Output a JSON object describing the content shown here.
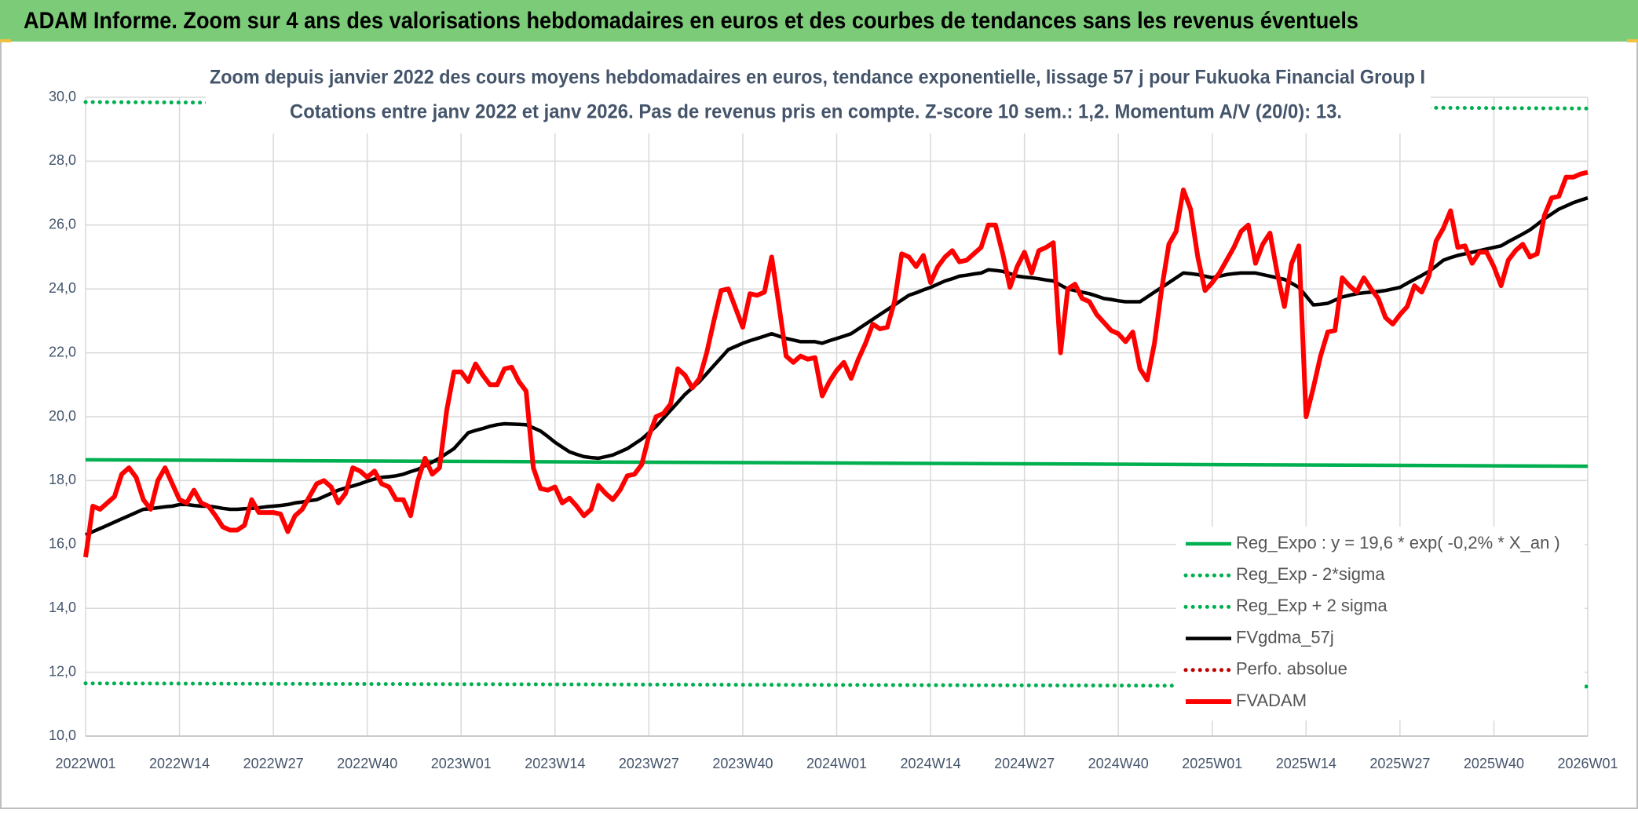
{
  "header": {
    "title": "ADAM Informe. Zoom sur 4 ans des valorisations hebdomadaires en euros et des courbes de tendances sans les revenus éventuels"
  },
  "chart_data": {
    "type": "line",
    "title": "Zoom depuis janvier 2022 des cours moyens hebdomadaires en euros, tendance exponentielle, lissage 57 j pour Fukuoka Financial Group I",
    "subtitle": "Cotations entre janv 2022 et janv 2026. Pas de revenus pris en compte. Z-score 10 sem.: 1,2. Momentum A/V (20/0): 13.",
    "categories": [
      "2022W01",
      null,
      null,
      null,
      null,
      null,
      null,
      null,
      null,
      null,
      null,
      null,
      null,
      "2022W14",
      null,
      null,
      null,
      null,
      null,
      null,
      null,
      null,
      null,
      null,
      null,
      null,
      "2022W27",
      null,
      null,
      null,
      null,
      null,
      null,
      null,
      null,
      null,
      null,
      null,
      null,
      "2022W40",
      null,
      null,
      null,
      null,
      null,
      null,
      null,
      null,
      null,
      null,
      null,
      null,
      "2023W01",
      null,
      null,
      null,
      null,
      null,
      null,
      null,
      null,
      null,
      null,
      null,
      null,
      "2023W14",
      null,
      null,
      null,
      null,
      null,
      null,
      null,
      null,
      null,
      null,
      null,
      null,
      "2023W27",
      null,
      null,
      null,
      null,
      null,
      null,
      null,
      null,
      null,
      null,
      null,
      null,
      "2023W40",
      null,
      null,
      null,
      null,
      null,
      null,
      null,
      null,
      null,
      null,
      null,
      null,
      "2024W01",
      null,
      null,
      null,
      null,
      null,
      null,
      null,
      null,
      null,
      null,
      null,
      null,
      "2024W14",
      null,
      null,
      null,
      null,
      null,
      null,
      null,
      null,
      null,
      null,
      null,
      null,
      "2024W27",
      null,
      null,
      null,
      null,
      null,
      null,
      null,
      null,
      null,
      null,
      null,
      null,
      "2024W40",
      null,
      null,
      null,
      null,
      null,
      null,
      null,
      null,
      null,
      null,
      null,
      null,
      "2025W01",
      null,
      null,
      null,
      null,
      null,
      null,
      null,
      null,
      null,
      null,
      null,
      null,
      "2025W14",
      null,
      null,
      null,
      null,
      null,
      null,
      null,
      null,
      null,
      null,
      null,
      null,
      "2025W27",
      null,
      null,
      null,
      null,
      null,
      null,
      null,
      null,
      null,
      null,
      null,
      null,
      "2025W40",
      null,
      null,
      null,
      null,
      null,
      null,
      null,
      null,
      null,
      null,
      null,
      null,
      "2026W01"
    ],
    "ylim": [
      10,
      30
    ],
    "yticks": [
      {
        "value": 10,
        "label": "10,0"
      },
      {
        "value": 12,
        "label": "12,0"
      },
      {
        "value": 14,
        "label": "14,0"
      },
      {
        "value": 16,
        "label": "16,0"
      },
      {
        "value": 18,
        "label": "18,0"
      },
      {
        "value": 20,
        "label": "20,0"
      },
      {
        "value": 22,
        "label": "22,0"
      },
      {
        "value": 24,
        "label": "24,0"
      },
      {
        "value": 26,
        "label": "26,0"
      },
      {
        "value": 28,
        "label": "28,0"
      },
      {
        "value": 30,
        "label": "30,0"
      }
    ],
    "grid": true,
    "legend": "lower right",
    "series": [
      {
        "name": "Reg_Expo : y = 19,6 * exp( -0,2% *  X_an )",
        "color": "#00b050",
        "style": "solid",
        "x": [
          "2022W01",
          "2026W01"
        ],
        "values": [
          18.65,
          18.45
        ]
      },
      {
        "name": "Reg_Exp - 2*sigma",
        "color": "#00b050",
        "style": "dotted",
        "x": [
          "2022W01",
          "2026W01"
        ],
        "values": [
          11.65,
          11.55
        ]
      },
      {
        "name": "Reg_Exp + 2 sigma",
        "color": "#00b050",
        "style": "dotted",
        "x": [
          "2022W01",
          "2026W01"
        ],
        "values": [
          29.85,
          29.65
        ]
      },
      {
        "name": "FVgdma_57j",
        "color": "#000000",
        "style": "solid",
        "values": [
          16.3,
          16.4,
          16.5,
          16.6,
          16.7,
          16.8,
          16.9,
          17.0,
          17.1,
          17.12,
          17.15,
          17.18,
          17.2,
          17.25,
          17.25,
          17.22,
          17.2,
          17.2,
          17.17,
          17.13,
          17.1,
          17.1,
          17.12,
          17.13,
          17.15,
          17.18,
          17.2,
          17.22,
          17.25,
          17.3,
          17.33,
          17.37,
          17.4,
          17.5,
          17.6,
          17.7,
          17.77,
          17.83,
          17.9,
          17.98,
          18.05,
          18.1,
          18.12,
          18.15,
          18.2,
          18.28,
          18.35,
          18.47,
          18.58,
          18.7,
          18.85,
          19.0,
          19.25,
          19.5,
          19.57,
          19.63,
          19.7,
          19.75,
          19.78,
          19.77,
          19.76,
          19.75,
          19.65,
          19.55,
          19.38,
          19.2,
          19.05,
          18.9,
          18.82,
          18.75,
          18.72,
          18.7,
          18.75,
          18.8,
          18.9,
          19.0,
          19.15,
          19.3,
          19.5,
          19.7,
          19.95,
          20.2,
          20.45,
          20.7,
          20.9,
          21.1,
          21.35,
          21.6,
          21.85,
          22.1,
          22.2,
          22.3,
          22.38,
          22.45,
          22.52,
          22.6,
          22.52,
          22.45,
          22.4,
          22.35,
          22.35,
          22.35,
          22.3,
          22.38,
          22.45,
          22.52,
          22.6,
          22.75,
          22.9,
          23.05,
          23.2,
          23.35,
          23.5,
          23.65,
          23.8,
          23.88,
          23.97,
          24.05,
          24.15,
          24.25,
          24.32,
          24.4,
          24.43,
          24.47,
          24.5,
          24.6,
          24.58,
          24.55,
          24.48,
          24.4,
          24.37,
          24.35,
          24.32,
          24.28,
          24.25,
          24.12,
          24.0,
          23.95,
          23.9,
          23.85,
          23.78,
          23.7,
          23.67,
          23.63,
          23.6,
          23.6,
          23.6,
          23.75,
          23.9,
          24.05,
          24.2,
          24.35,
          24.5,
          24.48,
          24.45,
          24.4,
          24.35,
          24.4,
          24.45,
          24.48,
          24.5,
          24.5,
          24.5,
          24.45,
          24.4,
          24.35,
          24.3,
          24.18,
          24.05,
          23.78,
          23.5,
          23.52,
          23.55,
          23.65,
          23.75,
          23.8,
          23.85,
          23.88,
          23.9,
          23.92,
          23.95,
          24.0,
          24.05,
          24.18,
          24.3,
          24.42,
          24.55,
          24.72,
          24.9,
          24.98,
          25.05,
          25.1,
          25.15,
          25.2,
          25.25,
          25.3,
          25.35,
          25.48,
          25.6,
          25.72,
          25.85,
          26.02,
          26.2,
          26.35,
          26.5,
          26.6,
          26.7,
          26.78,
          26.85
        ]
      },
      {
        "name": "Perfo. absolue",
        "color": "#c00000",
        "style": "dotted",
        "x": [],
        "values": []
      },
      {
        "name": "FVADAM",
        "color": "#ff0000",
        "style": "solid",
        "values": [
          15.6,
          17.2,
          17.1,
          17.3,
          17.5,
          18.2,
          18.4,
          18.1,
          17.4,
          17.1,
          18.0,
          18.4,
          17.9,
          17.4,
          17.3,
          17.7,
          17.3,
          17.2,
          16.9,
          16.55,
          16.45,
          16.45,
          16.6,
          17.4,
          17.0,
          17.0,
          17.0,
          16.95,
          16.4,
          16.9,
          17.1,
          17.5,
          17.9,
          18.0,
          17.8,
          17.3,
          17.6,
          18.4,
          18.3,
          18.1,
          18.3,
          17.9,
          17.8,
          17.4,
          17.4,
          16.9,
          18.0,
          18.7,
          18.2,
          18.4,
          20.2,
          21.4,
          21.4,
          21.1,
          21.65,
          21.3,
          21.0,
          21.0,
          21.5,
          21.55,
          21.1,
          20.8,
          18.4,
          17.75,
          17.7,
          17.8,
          17.3,
          17.45,
          17.2,
          16.9,
          17.1,
          17.85,
          17.6,
          17.4,
          17.7,
          18.15,
          18.2,
          18.5,
          19.4,
          20.0,
          20.1,
          20.4,
          21.5,
          21.3,
          20.9,
          21.2,
          22.0,
          23.0,
          23.95,
          24.0,
          23.4,
          22.8,
          23.85,
          23.8,
          23.9,
          25.0,
          23.5,
          21.9,
          21.7,
          21.9,
          21.8,
          21.85,
          20.65,
          21.1,
          21.45,
          21.7,
          21.2,
          21.8,
          22.3,
          22.9,
          22.75,
          22.8,
          23.6,
          25.1,
          25.0,
          24.7,
          25.05,
          24.2,
          24.7,
          25.0,
          25.2,
          24.85,
          24.9,
          25.1,
          25.3,
          26.0,
          26.0,
          25.1,
          24.05,
          24.7,
          25.15,
          24.5,
          25.2,
          25.3,
          25.45,
          22.0,
          24.0,
          24.15,
          23.7,
          23.6,
          23.2,
          22.95,
          22.7,
          22.6,
          22.35,
          22.65,
          21.5,
          21.15,
          22.3,
          24.0,
          25.4,
          25.8,
          27.1,
          26.5,
          25.0,
          23.95,
          24.2,
          24.5,
          24.9,
          25.3,
          25.8,
          26.0,
          24.8,
          25.4,
          25.75,
          24.5,
          23.45,
          24.8,
          25.35,
          20.0,
          20.9,
          21.9,
          22.65,
          22.7,
          24.35,
          24.1,
          23.9,
          24.35,
          24.0,
          23.7,
          23.1,
          22.9,
          23.2,
          23.45,
          24.1,
          23.9,
          24.4,
          25.5,
          25.9,
          26.45,
          25.3,
          25.35,
          24.8,
          25.15,
          25.15,
          24.7,
          24.1,
          24.9,
          25.2,
          25.4,
          25.0,
          25.1,
          26.3,
          26.85,
          26.9,
          27.5,
          27.5,
          27.6,
          27.65
        ]
      }
    ]
  }
}
